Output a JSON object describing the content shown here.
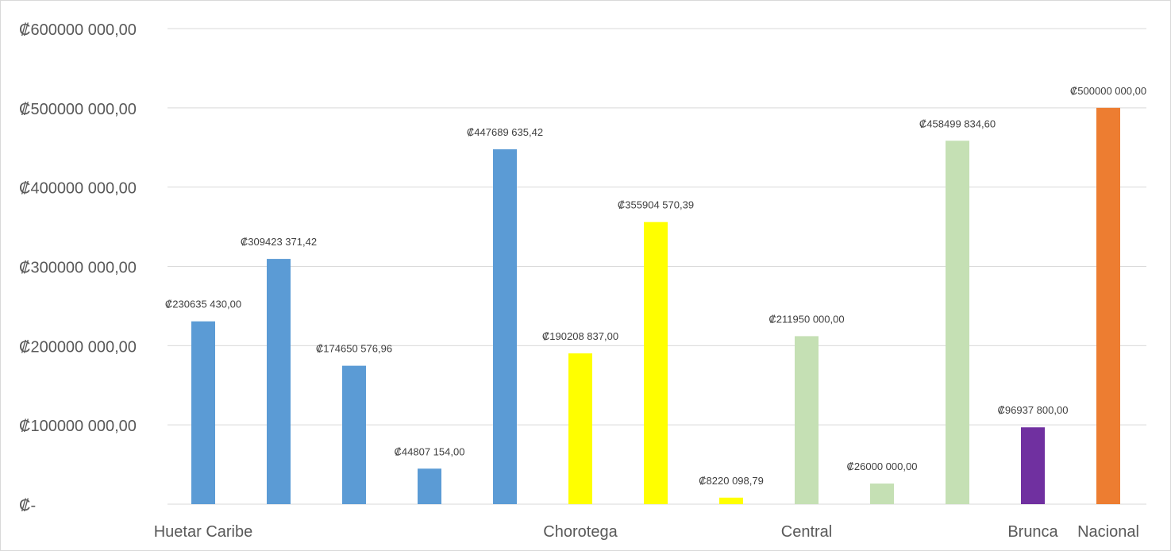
{
  "chart_data": {
    "type": "bar",
    "title": "",
    "xlabel": "",
    "ylabel": "",
    "ylim": [
      0,
      600000000
    ],
    "grid": true,
    "legend": "none",
    "y_ticks": [
      {
        "value": 0,
        "label": "₡-"
      },
      {
        "value": 100000000,
        "label": "₡100000 000,00"
      },
      {
        "value": 200000000,
        "label": "₡200000 000,00"
      },
      {
        "value": 300000000,
        "label": "₡300000 000,00"
      },
      {
        "value": 400000000,
        "label": "₡400000 000,00"
      },
      {
        "value": 500000000,
        "label": "₡500000 000,00"
      },
      {
        "value": 600000000,
        "label": "₡600000 000,00"
      }
    ],
    "category_labels": [
      {
        "label": "Huetar Caribe",
        "at_bar": 0
      },
      {
        "label": "Chorotega",
        "at_bar": 5
      },
      {
        "label": "Central",
        "at_bar": 8
      },
      {
        "label": "Brunca",
        "at_bar": 11
      },
      {
        "label": "Nacional",
        "at_bar": 12
      }
    ],
    "colors": {
      "blue": "#5b9bd5",
      "yellow": "#ffff00",
      "green": "#c5e0b4",
      "purple": "#7030a0",
      "orange": "#ed7d31",
      "grid": "#d9d9d9"
    },
    "bars": [
      {
        "value": 230635430.0,
        "label": "₡230635 430,00",
        "color": "blue"
      },
      {
        "value": 309423371.42,
        "label": "₡309423 371,42",
        "color": "blue"
      },
      {
        "value": 174650576.96,
        "label": "₡174650 576,96",
        "color": "blue"
      },
      {
        "value": 44807154.0,
        "label": "₡44807 154,00",
        "color": "blue"
      },
      {
        "value": 447689635.42,
        "label": "₡447689 635,42",
        "color": "blue"
      },
      {
        "value": 190208837.0,
        "label": "₡190208 837,00",
        "color": "yellow"
      },
      {
        "value": 355904570.39,
        "label": "₡355904 570,39",
        "color": "yellow"
      },
      {
        "value": 8220098.79,
        "label": "₡8220 098,79",
        "color": "yellow"
      },
      {
        "value": 211950000.0,
        "label": "₡211950 000,00",
        "color": "green"
      },
      {
        "value": 26000000.0,
        "label": "₡26000 000,00",
        "color": "green"
      },
      {
        "value": 458499834.6,
        "label": "₡458499 834,60",
        "color": "green"
      },
      {
        "value": 96937800.0,
        "label": "₡96937 800,00",
        "color": "purple"
      },
      {
        "value": 500000000.0,
        "label": "₡500000 000,00",
        "color": "orange"
      }
    ]
  }
}
